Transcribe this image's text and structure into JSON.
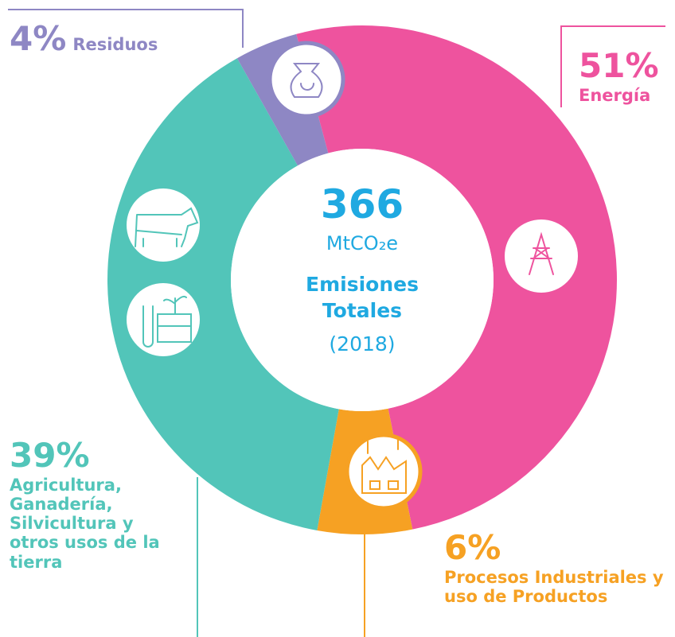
{
  "chart_data": {
    "type": "donut",
    "center_value": 366,
    "center_unit": "MtCO₂e",
    "center_title": "Emisiones Totales",
    "center_subtitle": "(2018)",
    "categories": [
      "Energía",
      "Procesos Industriales y uso de Productos",
      "Agricultura, Ganadería, Silvicultura y otros usos de la tierra",
      "Residuos"
    ],
    "values": [
      51,
      6,
      39,
      4
    ],
    "value_labels": [
      "51%",
      "6%",
      "39%",
      "4%"
    ],
    "colors": [
      "#ee539e",
      "#f6a123",
      "#52c5b9",
      "#8e87c4"
    ]
  }
}
